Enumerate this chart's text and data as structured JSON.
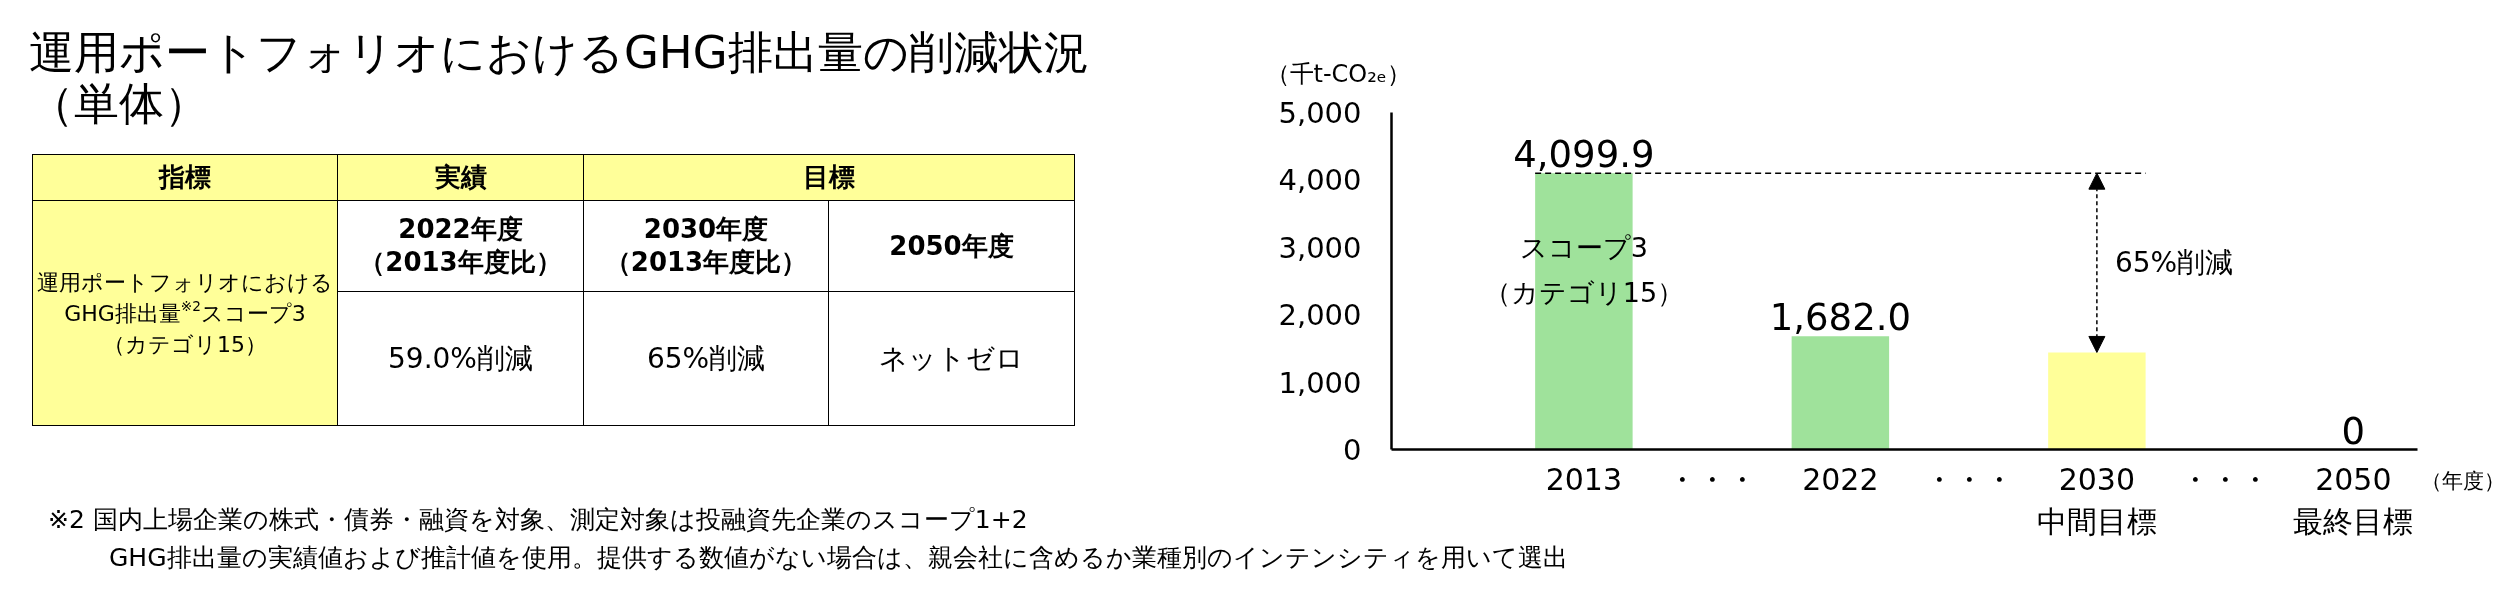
{
  "chart_data": [
    {
      "type": "other",
      "title": "運用ポートフォリオにおけるGHG排出量の削減状況（単体）",
      "annotations": [
        "指標",
        "実績",
        "目標",
        "運用ポートフォリオにおけるGHG排出量$^{※2}$スコープ3（カテゴリ15）",
        "2022年度（2013年度比）",
        "2030年度（2013年度比）",
        "2050年度",
        "59.0%削減",
        "65%削減",
        "ネットゼロ",
        "※2 国内上場企業の株式・債券・融資を対象、測定対象は投融資先企業のスコープ1+2\nGHG排出量の実績値および推計値を使用。提供する数値がない場合は、親会社に含めるか業種別のインテンシティを用いて選出"
      ]
    },
    {
      "type": "bar",
      "ylabel": "（千t-CO₂ₑ）",
      "xlabel": "（年度）",
      "categories": [
        "2013",
        "・・・",
        "2022",
        "・・・",
        "2030\n中間目標",
        "・・・",
        "2050\n最終目標"
      ],
      "values": [
        4099.9,
        null,
        1682.0,
        null,
        1440,
        null,
        0
      ],
      "colors": [
        "#9fe29b",
        null,
        "#9fe29b",
        null,
        "#ffff99",
        null,
        null
      ],
      "value_labels": [
        "4,099.9",
        null,
        "1,682.0",
        null,
        null,
        null,
        "0"
      ],
      "ylim": [
        0,
        5000
      ],
      "yticks": [
        0,
        {
          "value": 1000,
          "label": "1,000"
        },
        {
          "value": 2000,
          "label": "2,000"
        },
        {
          "value": 3000,
          "label": "3,000"
        },
        {
          "value": 4000,
          "label": "4,000"
        },
        {
          "value": 5000,
          "label": "5,000"
        }
      ],
      "ref_lines": [
        {
          "axis": "y",
          "value": 4099.9,
          "line_style": "dashed",
          "color": "#000000"
        }
      ],
      "annotations": [
        "スコープ3\n（カテゴリ15）",
        "65%削減"
      ]
    }
  ]
}
